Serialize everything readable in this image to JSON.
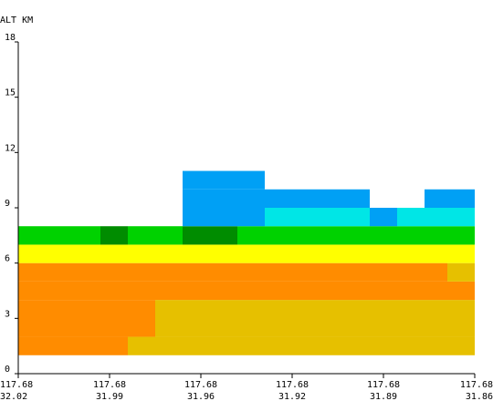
{
  "chart_data": {
    "type": "heatmap",
    "title": "",
    "ylabel": "ALT KM",
    "ylim": [
      0,
      18
    ],
    "yticks": [
      "0",
      "3",
      "6",
      "9",
      "12",
      "15",
      "18"
    ],
    "xticks": [
      {
        "lon": "117.68",
        "lat": "32.02"
      },
      {
        "lon": "117.68",
        "lat": "31.99"
      },
      {
        "lon": "117.68",
        "lat": "31.96"
      },
      {
        "lon": "117.68",
        "lat": "31.92"
      },
      {
        "lon": "117.68",
        "lat": "31.89"
      },
      {
        "lon": "117.68",
        "lat": "31.86"
      }
    ],
    "x_range": [
      0,
      5
    ],
    "colors": {
      "gold": "#e6c000",
      "orange": "#ff8c00",
      "yellow": "#ffff00",
      "green": "#00d200",
      "darkgreen": "#008c00",
      "cyan": "#00e6e6",
      "blue": "#00a0f5"
    },
    "cells": [
      {
        "x0": 0.0,
        "x1": 1.2,
        "y0": 1,
        "y1": 2,
        "color": "orange"
      },
      {
        "x0": 1.2,
        "x1": 5.0,
        "y0": 1,
        "y1": 2,
        "color": "gold"
      },
      {
        "x0": 0.0,
        "x1": 1.5,
        "y0": 2,
        "y1": 4,
        "color": "orange"
      },
      {
        "x0": 1.5,
        "x1": 5.0,
        "y0": 2,
        "y1": 4,
        "color": "gold"
      },
      {
        "x0": 0.0,
        "x1": 5.0,
        "y0": 4,
        "y1": 5,
        "color": "orange"
      },
      {
        "x0": 0.0,
        "x1": 4.7,
        "y0": 5,
        "y1": 6,
        "color": "orange"
      },
      {
        "x0": 4.7,
        "x1": 5.0,
        "y0": 5,
        "y1": 6,
        "color": "gold"
      },
      {
        "x0": 0.0,
        "x1": 5.0,
        "y0": 6,
        "y1": 7,
        "color": "yellow"
      },
      {
        "x0": 0.0,
        "x1": 0.9,
        "y0": 7,
        "y1": 8,
        "color": "green"
      },
      {
        "x0": 0.9,
        "x1": 1.2,
        "y0": 7,
        "y1": 8,
        "color": "darkgreen"
      },
      {
        "x0": 1.2,
        "x1": 1.8,
        "y0": 7,
        "y1": 8,
        "color": "green"
      },
      {
        "x0": 1.8,
        "x1": 2.4,
        "y0": 7,
        "y1": 8,
        "color": "darkgreen"
      },
      {
        "x0": 2.4,
        "x1": 5.0,
        "y0": 7,
        "y1": 8,
        "color": "green"
      },
      {
        "x0": 1.8,
        "x1": 2.7,
        "y0": 8,
        "y1": 9,
        "color": "blue"
      },
      {
        "x0": 2.7,
        "x1": 3.85,
        "y0": 8,
        "y1": 9,
        "color": "cyan"
      },
      {
        "x0": 3.85,
        "x1": 4.15,
        "y0": 8,
        "y1": 9,
        "color": "blue"
      },
      {
        "x0": 4.15,
        "x1": 5.0,
        "y0": 8,
        "y1": 9,
        "color": "cyan"
      },
      {
        "x0": 1.8,
        "x1": 3.85,
        "y0": 9,
        "y1": 10,
        "color": "blue"
      },
      {
        "x0": 4.45,
        "x1": 5.0,
        "y0": 9,
        "y1": 10,
        "color": "blue"
      },
      {
        "x0": 1.8,
        "x1": 2.7,
        "y0": 10,
        "y1": 11,
        "color": "blue"
      }
    ]
  }
}
